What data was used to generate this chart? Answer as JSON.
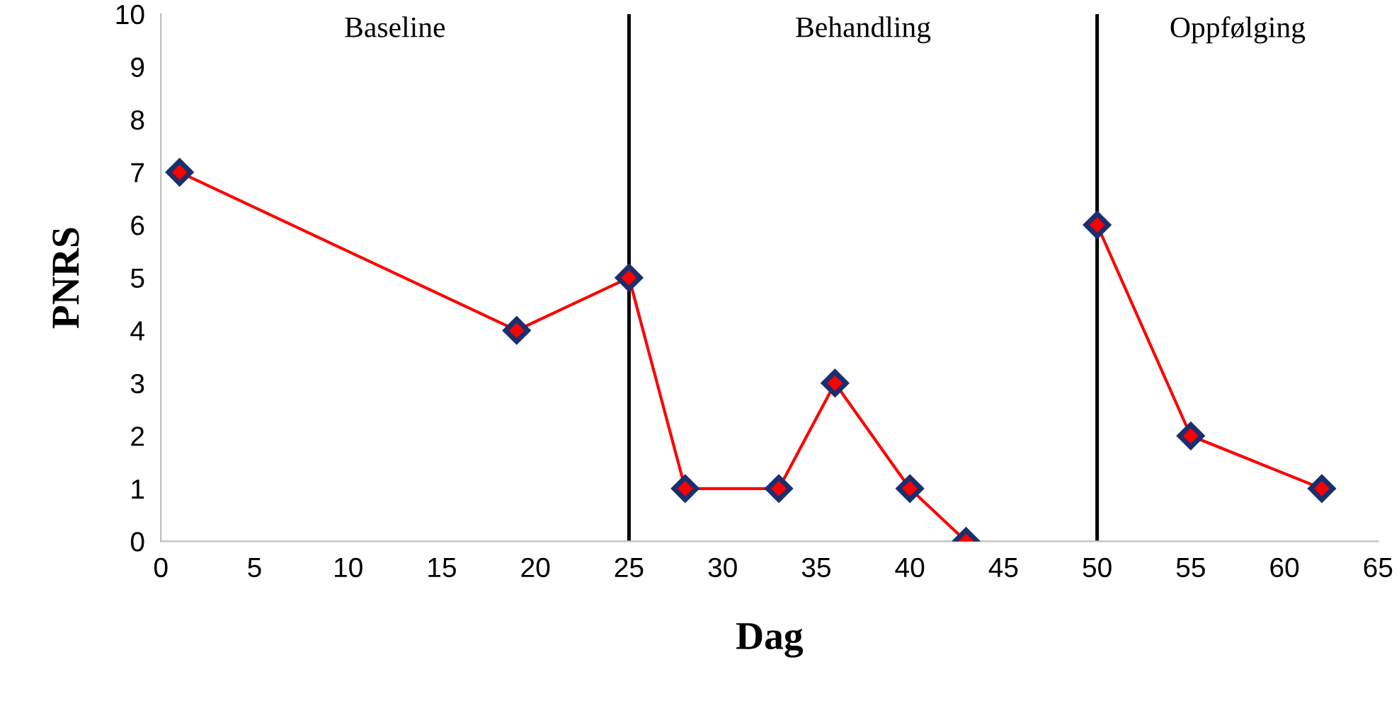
{
  "chart_data": {
    "type": "line",
    "xlabel": "Dag",
    "ylabel": "PNRS",
    "series": [
      {
        "color": "#ff0000",
        "x": [
          1,
          19,
          25,
          28,
          33,
          36,
          40,
          43
        ],
        "values": [
          7,
          4,
          5,
          1,
          1,
          3,
          1,
          0
        ]
      },
      {
        "color": "#ff0000",
        "x": [
          50,
          55,
          62
        ],
        "values": [
          6,
          2,
          1
        ]
      }
    ],
    "xlim": [
      0,
      65
    ],
    "xticks": [
      0,
      5,
      10,
      15,
      20,
      25,
      30,
      35,
      40,
      45,
      50,
      55,
      60,
      65
    ],
    "ylim": [
      0,
      10
    ],
    "yticks": [
      0,
      1,
      2,
      3,
      4,
      5,
      6,
      7,
      8,
      9,
      10
    ],
    "ref_lines": [
      {
        "axis": "x",
        "value": 25,
        "color": "#000000"
      },
      {
        "axis": "x",
        "value": 50,
        "color": "#000000"
      }
    ],
    "annotations": [
      "Baseline",
      "Behandling",
      "Oppfølging"
    ],
    "marker": "diamond",
    "line_style": "solid",
    "grid": false,
    "legend": false
  }
}
